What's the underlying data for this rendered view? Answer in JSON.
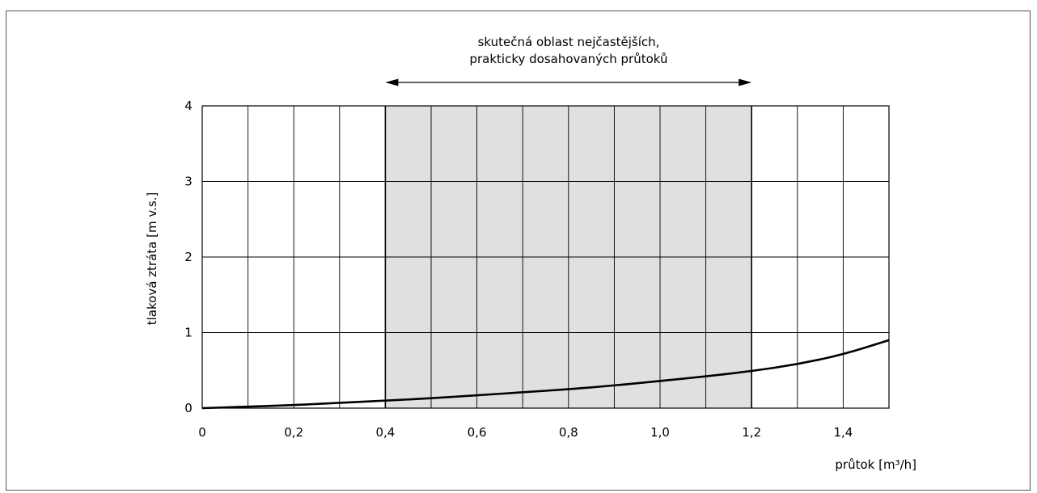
{
  "chart_data": {
    "type": "line",
    "title": "",
    "xlabel": "průtok [m³/h]",
    "ylabel": "tlaková ztráta [m v.s.]",
    "xlim": [
      0,
      1.5
    ],
    "ylim": [
      0,
      4
    ],
    "x_ticks": [
      0,
      0.2,
      0.4,
      0.6,
      0.8,
      1.0,
      1.2,
      1.4
    ],
    "x_tick_labels": [
      "0",
      "0,2",
      "0,4",
      "0,6",
      "0,8",
      "1,0",
      "1,2",
      "1,4"
    ],
    "y_ticks": [
      0,
      1,
      2,
      3,
      4
    ],
    "y_tick_labels": [
      "0",
      "1",
      "2",
      "3",
      "4"
    ],
    "grid": true,
    "highlight_range": {
      "x_start": 0.4,
      "x_end": 1.2,
      "label_line1": "skutečná oblast nejčastějších,",
      "label_line2": "prakticky dosahovaných průtoků",
      "fill_color": "#e0e0e0"
    },
    "series": [
      {
        "x": [
          0,
          0.1,
          0.2,
          0.3,
          0.4,
          0.5,
          0.6,
          0.7,
          0.8,
          0.9,
          1.0,
          1.1,
          1.2,
          1.3,
          1.4,
          1.5
        ],
        "y": [
          0,
          0.02,
          0.04,
          0.07,
          0.1,
          0.13,
          0.17,
          0.21,
          0.25,
          0.3,
          0.36,
          0.42,
          0.49,
          0.58,
          0.71,
          0.9
        ]
      }
    ]
  }
}
